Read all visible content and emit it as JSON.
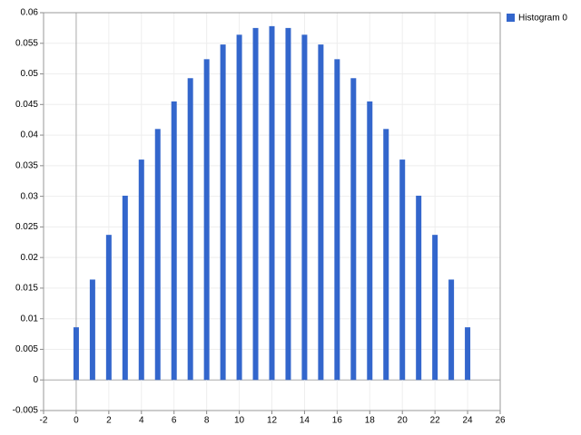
{
  "chart_data": {
    "type": "bar",
    "x": [
      0,
      1,
      2,
      3,
      4,
      5,
      6,
      7,
      8,
      9,
      10,
      11,
      12,
      13,
      14,
      15,
      16,
      17,
      18,
      19,
      20,
      21,
      22,
      23,
      24
    ],
    "series": [
      {
        "name": "Histogram 0",
        "color": "#3366cc",
        "values": [
          0.0086,
          0.0164,
          0.0237,
          0.0301,
          0.036,
          0.041,
          0.0455,
          0.0493,
          0.0524,
          0.0548,
          0.0564,
          0.0575,
          0.0578,
          0.0575,
          0.0564,
          0.0548,
          0.0524,
          0.0493,
          0.0455,
          0.041,
          0.036,
          0.0301,
          0.0237,
          0.0164,
          0.0086
        ]
      }
    ],
    "xlim": [
      -2,
      26
    ],
    "xticks": [
      -2,
      0,
      2,
      4,
      6,
      8,
      10,
      12,
      14,
      16,
      18,
      20,
      22,
      24,
      26
    ],
    "ylim": [
      -0.005,
      0.06
    ],
    "yticks": [
      -0.005,
      0,
      0.005,
      0.01,
      0.015,
      0.02,
      0.025,
      0.03,
      0.035,
      0.04,
      0.045,
      0.05,
      0.055,
      0.06
    ],
    "grid": true,
    "legend": "right"
  }
}
